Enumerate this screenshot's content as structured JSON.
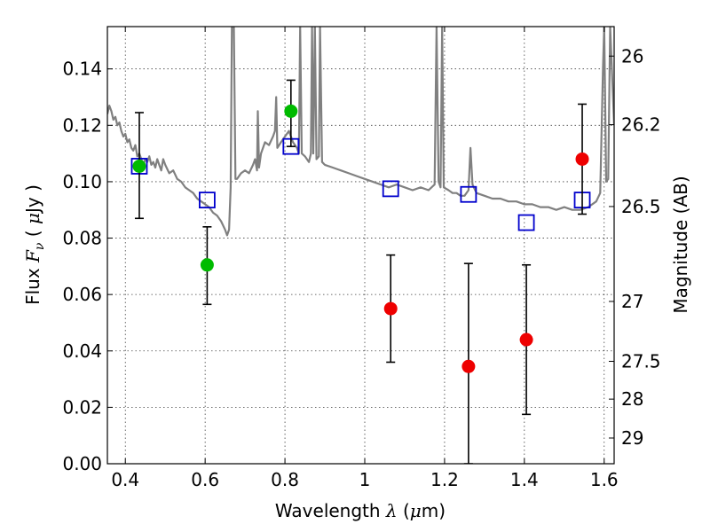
{
  "chart_data": {
    "type": "scatter",
    "title": "",
    "xlabel": {
      "prefix": "Wavelength  ",
      "symbol": "λ",
      "unit_open": " (",
      "unit_mu": "μ",
      "unit_rest": "m)"
    },
    "ylabel": {
      "prefix": "Flux  ",
      "symbol": "F",
      "subscript": "ν",
      "unit_open": "  (  ",
      "unit_mu": "μ",
      "unit_rest": "Jy  )"
    },
    "y2label": "Magnitude (AB)",
    "xlim": [
      0.355,
      1.625
    ],
    "ylim": [
      0.0,
      0.155
    ],
    "grid": true,
    "x_ticks": [
      {
        "value": 0.4,
        "label": "0.4"
      },
      {
        "value": 0.6,
        "label": "0.6"
      },
      {
        "value": 0.8,
        "label": "0.8"
      },
      {
        "value": 1.0,
        "label": "1"
      },
      {
        "value": 1.2,
        "label": "1.2"
      },
      {
        "value": 1.4,
        "label": "1.4"
      },
      {
        "value": 1.6,
        "label": "1.6"
      }
    ],
    "y_ticks": [
      {
        "value": 0.0,
        "label": "0.00"
      },
      {
        "value": 0.02,
        "label": "0.02"
      },
      {
        "value": 0.04,
        "label": "0.04"
      },
      {
        "value": 0.06,
        "label": "0.06"
      },
      {
        "value": 0.08,
        "label": "0.08"
      },
      {
        "value": 0.1,
        "label": "0.10"
      },
      {
        "value": 0.12,
        "label": "0.12"
      },
      {
        "value": 0.14,
        "label": "0.14"
      }
    ],
    "y2_ticks": [
      {
        "magnitude": 26,
        "label": "26"
      },
      {
        "magnitude": 26.2,
        "label": "26.2"
      },
      {
        "magnitude": 26.5,
        "label": "26.5"
      },
      {
        "magnitude": 27,
        "label": "27"
      },
      {
        "magnitude": 27.5,
        "label": "27.5"
      },
      {
        "magnitude": 28,
        "label": "28"
      },
      {
        "magnitude": 29,
        "label": "29"
      }
    ],
    "colors": {
      "model": "#808080",
      "optical": "#00bb00",
      "nir": "#ee0000",
      "model_bands": "#0000cc",
      "errorbar": "#000000"
    },
    "series": [
      {
        "kind": "line",
        "color": "#808080",
        "points": [
          [
            0.355,
            0.124
          ],
          [
            0.36,
            0.127
          ],
          [
            0.365,
            0.125
          ],
          [
            0.37,
            0.122
          ],
          [
            0.375,
            0.123
          ],
          [
            0.38,
            0.12
          ],
          [
            0.385,
            0.121
          ],
          [
            0.39,
            0.118
          ],
          [
            0.395,
            0.116
          ],
          [
            0.4,
            0.117
          ],
          [
            0.405,
            0.114
          ],
          [
            0.41,
            0.115
          ],
          [
            0.415,
            0.112
          ],
          [
            0.42,
            0.111
          ],
          [
            0.425,
            0.113
          ],
          [
            0.43,
            0.109
          ],
          [
            0.435,
            0.11
          ],
          [
            0.44,
            0.108
          ],
          [
            0.445,
            0.106
          ],
          [
            0.45,
            0.108
          ],
          [
            0.455,
            0.107
          ],
          [
            0.46,
            0.109
          ],
          [
            0.465,
            0.106
          ],
          [
            0.47,
            0.107
          ],
          [
            0.475,
            0.105
          ],
          [
            0.48,
            0.108
          ],
          [
            0.485,
            0.106
          ],
          [
            0.49,
            0.104
          ],
          [
            0.495,
            0.108
          ],
          [
            0.5,
            0.106
          ],
          [
            0.51,
            0.103
          ],
          [
            0.52,
            0.104
          ],
          [
            0.53,
            0.101
          ],
          [
            0.54,
            0.1
          ],
          [
            0.55,
            0.098
          ],
          [
            0.56,
            0.097
          ],
          [
            0.57,
            0.096
          ],
          [
            0.58,
            0.094
          ],
          [
            0.59,
            0.093
          ],
          [
            0.6,
            0.092
          ],
          [
            0.61,
            0.091
          ],
          [
            0.62,
            0.089
          ],
          [
            0.63,
            0.088
          ],
          [
            0.64,
            0.086
          ],
          [
            0.65,
            0.083
          ],
          [
            0.655,
            0.081
          ],
          [
            0.66,
            0.083
          ],
          [
            0.664,
            0.098
          ],
          [
            0.667,
            0.155
          ],
          [
            0.672,
            0.155
          ],
          [
            0.676,
            0.101
          ],
          [
            0.68,
            0.101
          ],
          [
            0.69,
            0.103
          ],
          [
            0.7,
            0.104
          ],
          [
            0.71,
            0.103
          ],
          [
            0.72,
            0.106
          ],
          [
            0.725,
            0.108
          ],
          [
            0.73,
            0.104
          ],
          [
            0.732,
            0.125
          ],
          [
            0.735,
            0.105
          ],
          [
            0.74,
            0.11
          ],
          [
            0.75,
            0.114
          ],
          [
            0.76,
            0.113
          ],
          [
            0.77,
            0.116
          ],
          [
            0.775,
            0.118
          ],
          [
            0.778,
            0.13
          ],
          [
            0.781,
            0.112
          ],
          [
            0.79,
            0.114
          ],
          [
            0.8,
            0.116
          ],
          [
            0.81,
            0.118
          ],
          [
            0.82,
            0.114
          ],
          [
            0.83,
            0.112
          ],
          [
            0.835,
            0.11
          ],
          [
            0.838,
            0.155
          ],
          [
            0.842,
            0.11
          ],
          [
            0.85,
            0.109
          ],
          [
            0.86,
            0.107
          ],
          [
            0.865,
            0.11
          ],
          [
            0.868,
            0.155
          ],
          [
            0.871,
            0.11
          ],
          [
            0.875,
            0.155
          ],
          [
            0.879,
            0.108
          ],
          [
            0.885,
            0.109
          ],
          [
            0.888,
            0.155
          ],
          [
            0.893,
            0.107
          ],
          [
            0.9,
            0.106
          ],
          [
            0.92,
            0.105
          ],
          [
            0.94,
            0.104
          ],
          [
            0.96,
            0.103
          ],
          [
            0.98,
            0.102
          ],
          [
            1.0,
            0.101
          ],
          [
            1.02,
            0.1
          ],
          [
            1.04,
            0.099
          ],
          [
            1.06,
            0.098
          ],
          [
            1.08,
            0.099
          ],
          [
            1.1,
            0.098
          ],
          [
            1.12,
            0.097
          ],
          [
            1.14,
            0.098
          ],
          [
            1.16,
            0.097
          ],
          [
            1.175,
            0.099
          ],
          [
            1.18,
            0.155
          ],
          [
            1.185,
            0.1
          ],
          [
            1.19,
            0.098
          ],
          [
            1.194,
            0.155
          ],
          [
            1.198,
            0.098
          ],
          [
            1.21,
            0.097
          ],
          [
            1.22,
            0.096
          ],
          [
            1.23,
            0.096
          ],
          [
            1.24,
            0.095
          ],
          [
            1.25,
            0.095
          ],
          [
            1.26,
            0.097
          ],
          [
            1.265,
            0.112
          ],
          [
            1.27,
            0.099
          ],
          [
            1.28,
            0.096
          ],
          [
            1.3,
            0.095
          ],
          [
            1.32,
            0.094
          ],
          [
            1.34,
            0.094
          ],
          [
            1.36,
            0.093
          ],
          [
            1.38,
            0.093
          ],
          [
            1.4,
            0.092
          ],
          [
            1.42,
            0.092
          ],
          [
            1.44,
            0.091
          ],
          [
            1.46,
            0.091
          ],
          [
            1.48,
            0.09
          ],
          [
            1.5,
            0.091
          ],
          [
            1.52,
            0.09
          ],
          [
            1.54,
            0.09
          ],
          [
            1.56,
            0.091
          ],
          [
            1.58,
            0.093
          ],
          [
            1.59,
            0.096
          ],
          [
            1.597,
            0.14
          ],
          [
            1.6,
            0.155
          ],
          [
            1.605,
            0.1
          ],
          [
            1.61,
            0.101
          ],
          [
            1.615,
            0.155
          ],
          [
            1.625,
            0.12
          ]
        ]
      },
      {
        "kind": "points",
        "marker": "square",
        "color": "#0000cc",
        "points": [
          [
            0.435,
            0.1055
          ],
          [
            0.605,
            0.0935
          ],
          [
            0.815,
            0.1125
          ],
          [
            1.065,
            0.0975
          ],
          [
            1.26,
            0.0955
          ],
          [
            1.405,
            0.0855
          ],
          [
            1.545,
            0.0935
          ]
        ]
      },
      {
        "kind": "points",
        "marker": "circle",
        "color": "#00bb00",
        "points": [
          {
            "x": 0.435,
            "y": 0.1055,
            "err": [
              0.087,
              0.1245
            ]
          },
          {
            "x": 0.605,
            "y": 0.0705,
            "err": [
              0.0565,
              0.084
            ]
          },
          {
            "x": 0.815,
            "y": 0.125,
            "err": [
              0.1125,
              0.136
            ]
          }
        ]
      },
      {
        "kind": "points",
        "marker": "circle",
        "color": "#ee0000",
        "points": [
          {
            "x": 1.065,
            "y": 0.055,
            "err": [
              0.036,
              0.074
            ]
          },
          {
            "x": 1.26,
            "y": 0.0345,
            "err": [
              0.0,
              0.071
            ]
          },
          {
            "x": 1.405,
            "y": 0.044,
            "err": [
              0.0175,
              0.0705
            ]
          },
          {
            "x": 1.545,
            "y": 0.108,
            "err": [
              0.0885,
              0.1275
            ]
          }
        ]
      }
    ]
  }
}
